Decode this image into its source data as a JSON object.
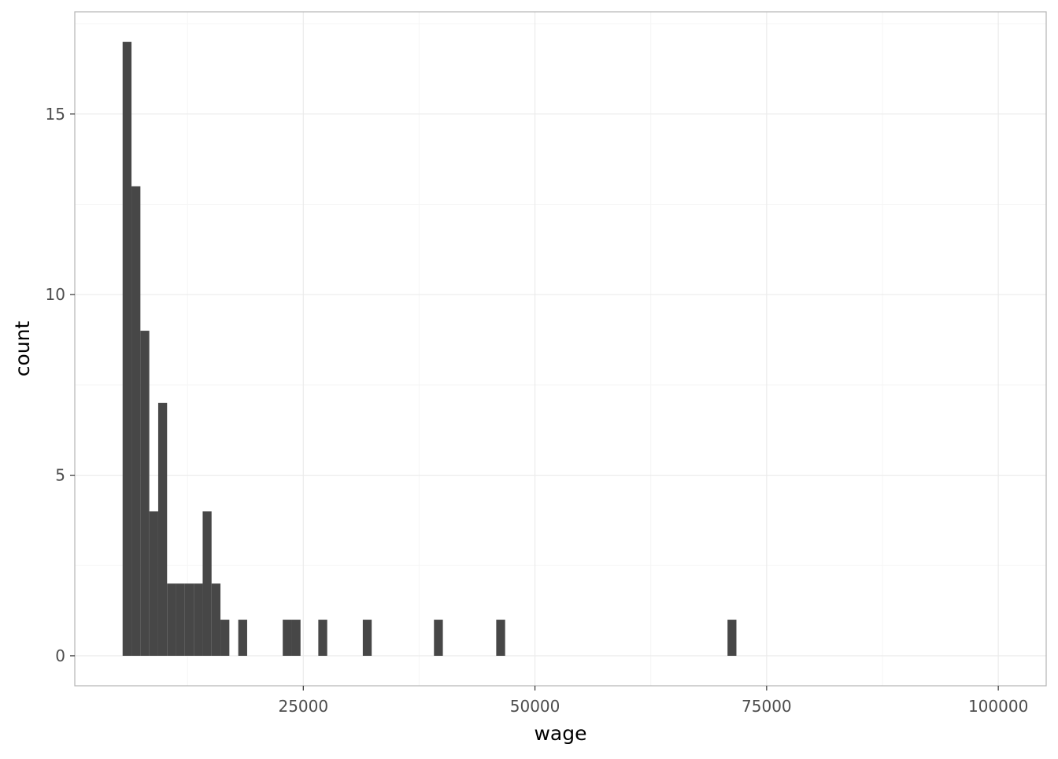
{
  "chart_data": {
    "type": "bar",
    "subtype": "histogram",
    "xlabel": "wage",
    "ylabel": "count",
    "binwidth": 960,
    "bins": [
      {
        "xmin": 5500,
        "count": 17
      },
      {
        "xmin": 6460,
        "count": 13
      },
      {
        "xmin": 7420,
        "count": 9
      },
      {
        "xmin": 8380,
        "count": 4
      },
      {
        "xmin": 9340,
        "count": 7
      },
      {
        "xmin": 10300,
        "count": 2
      },
      {
        "xmin": 11260,
        "count": 2
      },
      {
        "xmin": 12220,
        "count": 2
      },
      {
        "xmin": 13180,
        "count": 2
      },
      {
        "xmin": 14140,
        "count": 4
      },
      {
        "xmin": 15100,
        "count": 2
      },
      {
        "xmin": 16060,
        "count": 1
      },
      {
        "xmin": 17980,
        "count": 1
      },
      {
        "xmin": 22780,
        "count": 1
      },
      {
        "xmin": 23740,
        "count": 1
      },
      {
        "xmin": 26620,
        "count": 1
      },
      {
        "xmin": 31420,
        "count": 1
      },
      {
        "xmin": 39100,
        "count": 1
      },
      {
        "xmin": 45820,
        "count": 1
      },
      {
        "xmin": 70780,
        "count": 1
      }
    ],
    "xlim": [
      339,
      105170
    ],
    "ylim": [
      -0.83,
      17.83
    ],
    "xticks": [
      25000,
      50000,
      75000,
      100000
    ],
    "xtick_labels": [
      "25000",
      "50000",
      "75000",
      "100000"
    ],
    "xminor": [
      12500,
      37500,
      62500,
      87500
    ],
    "yticks": [
      0,
      5,
      10,
      15
    ],
    "ytick_labels": [
      "0",
      "5",
      "10",
      "15"
    ],
    "yminor": [
      2.5,
      7.5,
      12.5,
      17.5
    ],
    "grid": true,
    "colors": {
      "bar": "#474747",
      "grid_major": "#ebebeb",
      "grid_minor": "#f5f5f5",
      "panel_border": "#b3b3b3",
      "tick_label": "#4d4d4d"
    }
  }
}
